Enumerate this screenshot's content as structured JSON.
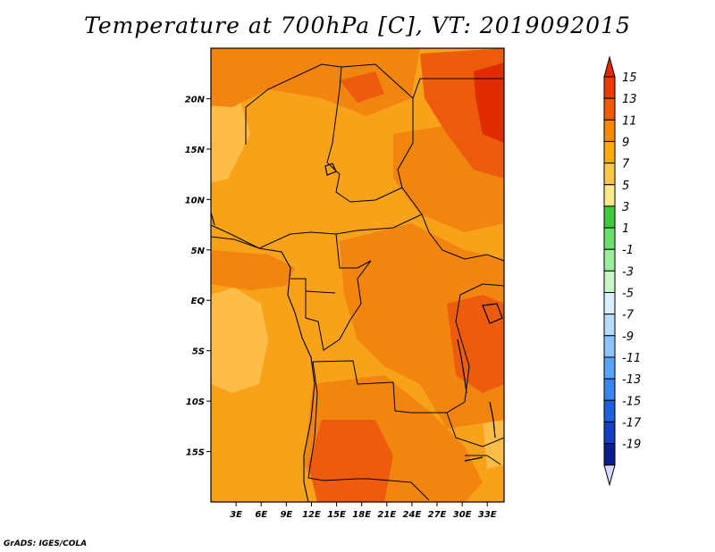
{
  "title": "Temperature at 700hPa [C], VT: 2019092015",
  "footer": "GrADS: IGES/COLA",
  "map": {
    "lon_range": [
      0,
      35
    ],
    "lat_range": [
      -20,
      25
    ],
    "lat_ticks": [
      {
        "value": 20,
        "label": "20N"
      },
      {
        "value": 15,
        "label": "15N"
      },
      {
        "value": 10,
        "label": "10N"
      },
      {
        "value": 5,
        "label": "5N"
      },
      {
        "value": 0,
        "label": "EQ"
      },
      {
        "value": -5,
        "label": "5S"
      },
      {
        "value": -10,
        "label": "10S"
      },
      {
        "value": -15,
        "label": "15S"
      }
    ],
    "lon_ticks": [
      {
        "value": 3,
        "label": "3E"
      },
      {
        "value": 6,
        "label": "6E"
      },
      {
        "value": 9,
        "label": "9E"
      },
      {
        "value": 12,
        "label": "12E"
      },
      {
        "value": 15,
        "label": "15E"
      },
      {
        "value": 18,
        "label": "18E"
      },
      {
        "value": 21,
        "label": "21E"
      },
      {
        "value": 24,
        "label": "24E"
      },
      {
        "value": 27,
        "label": "27E"
      },
      {
        "value": 30,
        "label": "30E"
      },
      {
        "value": 33,
        "label": "33E"
      }
    ]
  },
  "colorbar": {
    "labels": [
      "15",
      "13",
      "11",
      "9",
      "7",
      "5",
      "3",
      "1",
      "-1",
      "-3",
      "-5",
      "-7",
      "-9",
      "-11",
      "-13",
      "-15",
      "-17",
      "-19"
    ],
    "colors": [
      "#ee3a00",
      "#f25a00",
      "#f88a00",
      "#fbaa10",
      "#fbc84a",
      "#fde88a",
      "#3ec93e",
      "#6ae06a",
      "#9af09a",
      "#c8f8c8",
      "#d8f0ff",
      "#b4dcff",
      "#8cc4ff",
      "#5aa4ff",
      "#3a84f0",
      "#1e60e0",
      "#1440c0",
      "#0a1e90"
    ],
    "top_arrow_color": "#dd2800",
    "bottom_arrow_color": "#d8d8ff"
  },
  "colors": {
    "field_base": "#f8a21a",
    "warm_11": "#f28410",
    "warm_13": "#ec5e0c",
    "warm_15": "#e02800",
    "cool_7": "#fbc050",
    "border": "#000000"
  }
}
